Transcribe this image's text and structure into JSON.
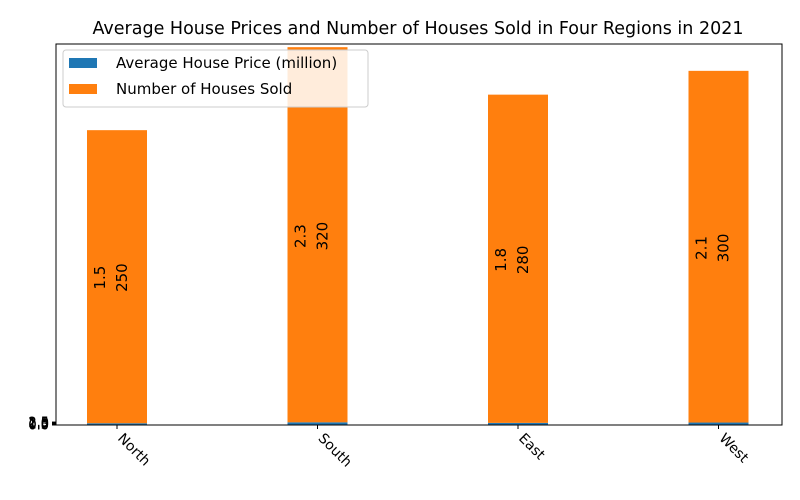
{
  "chart_data": {
    "type": "bar",
    "stacked": true,
    "title": "Average House Prices and Number of Houses Sold in Four Regions in 2021",
    "xlabel": "",
    "ylabel": "",
    "categories": [
      "North",
      "South",
      "East",
      "West"
    ],
    "series": [
      {
        "name": "Average House Price (million)",
        "values": [
          1.5,
          2.3,
          1.8,
          2.1
        ],
        "color": "#1f77b4"
      },
      {
        "name": "Number of Houses Sold",
        "values": [
          250,
          320,
          280,
          300
        ],
        "color": "#ff7f0e"
      }
    ],
    "ylim": [
      0,
      325
    ],
    "yticks": [
      "0.0",
      "0.5",
      "1.0",
      "1.5",
      "2.0",
      "2.5"
    ],
    "legend": {
      "placement": "top-left"
    },
    "grid": false,
    "xtick_rotation": -45
  }
}
